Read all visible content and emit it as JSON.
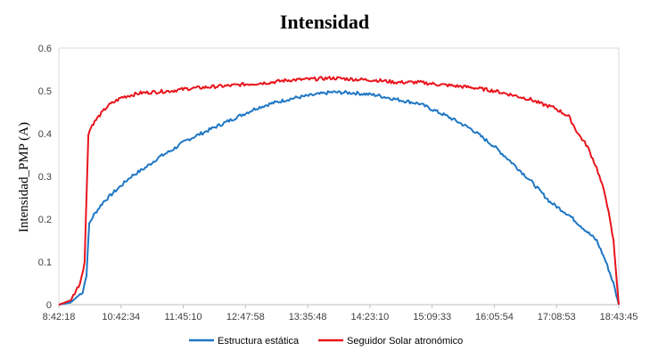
{
  "chart_data": {
    "type": "line",
    "title": "Intensidad",
    "ylabel": "Intensidad_PMP (A)",
    "xlabel": "",
    "ylim": [
      0,
      0.6
    ],
    "yticks": [
      "0",
      "0.1",
      "0.2",
      "0.3",
      "0.4",
      "0.5",
      "0.6"
    ],
    "xlim": [
      "8:42:18",
      "18:43:45"
    ],
    "xticks": [
      "8:42:18",
      "10:42:34",
      "11:45:10",
      "12:47:58",
      "13:35:48",
      "14:23:10",
      "15:09:33",
      "16:05:54",
      "17:08:53",
      "18:43:45"
    ],
    "grid": false,
    "legend": "bottom",
    "series": [
      {
        "name": "Estructura estática",
        "color": "#1F77C4",
        "x": [
          "8:42:18",
          "8:55:00",
          "9:08:00",
          "9:12:00",
          "9:15:00",
          "9:20:00",
          "9:30:00",
          "9:45:00",
          "10:00:00",
          "10:15:00",
          "10:30:00",
          "10:42:34",
          "11:00:00",
          "11:15:00",
          "11:30:00",
          "11:45:10",
          "12:00:00",
          "12:15:00",
          "12:30:00",
          "12:47:58",
          "13:00:00",
          "13:15:00",
          "13:35:48",
          "14:00:00",
          "14:23:10",
          "14:45:00",
          "15:09:33",
          "15:20:00",
          "15:40:00",
          "16:05:54",
          "16:30:00",
          "16:50:00",
          "17:08:53",
          "17:30:00",
          "17:50:00",
          "18:10:00",
          "18:20:00",
          "18:30:00",
          "18:38:00",
          "18:43:45"
        ],
        "y": [
          0.0,
          0.005,
          0.03,
          0.07,
          0.19,
          0.21,
          0.24,
          0.27,
          0.3,
          0.32,
          0.345,
          0.36,
          0.385,
          0.4,
          0.415,
          0.43,
          0.445,
          0.46,
          0.47,
          0.48,
          0.485,
          0.49,
          0.497,
          0.495,
          0.49,
          0.48,
          0.47,
          0.46,
          0.44,
          0.41,
          0.37,
          0.33,
          0.29,
          0.24,
          0.21,
          0.17,
          0.15,
          0.1,
          0.05,
          0.0
        ]
      },
      {
        "name": "Seguidor Solar atronómico",
        "color": "#E8141C",
        "x": [
          "8:42:18",
          "8:55:00",
          "9:05:00",
          "9:10:00",
          "9:14:00",
          "9:18:00",
          "9:25:00",
          "9:35:00",
          "9:50:00",
          "10:10:00",
          "10:42:34",
          "11:00:00",
          "11:30:00",
          "11:45:10",
          "12:00:00",
          "12:30:00",
          "12:47:58",
          "13:10:00",
          "13:35:48",
          "14:00:00",
          "14:23:10",
          "14:45:00",
          "15:09:33",
          "15:30:00",
          "16:05:54",
          "16:30:00",
          "16:50:00",
          "17:08:53",
          "17:20:00",
          "17:35:00",
          "17:50:00",
          "18:00:00",
          "18:10:00",
          "18:20:00",
          "18:30:00",
          "18:38:00",
          "18:43:45"
        ],
        "y": [
          0.0,
          0.01,
          0.05,
          0.1,
          0.4,
          0.42,
          0.44,
          0.465,
          0.485,
          0.495,
          0.5,
          0.505,
          0.51,
          0.512,
          0.515,
          0.52,
          0.525,
          0.527,
          0.53,
          0.527,
          0.525,
          0.52,
          0.52,
          0.515,
          0.508,
          0.5,
          0.49,
          0.48,
          0.47,
          0.46,
          0.44,
          0.4,
          0.37,
          0.32,
          0.25,
          0.15,
          0.0
        ]
      }
    ]
  }
}
